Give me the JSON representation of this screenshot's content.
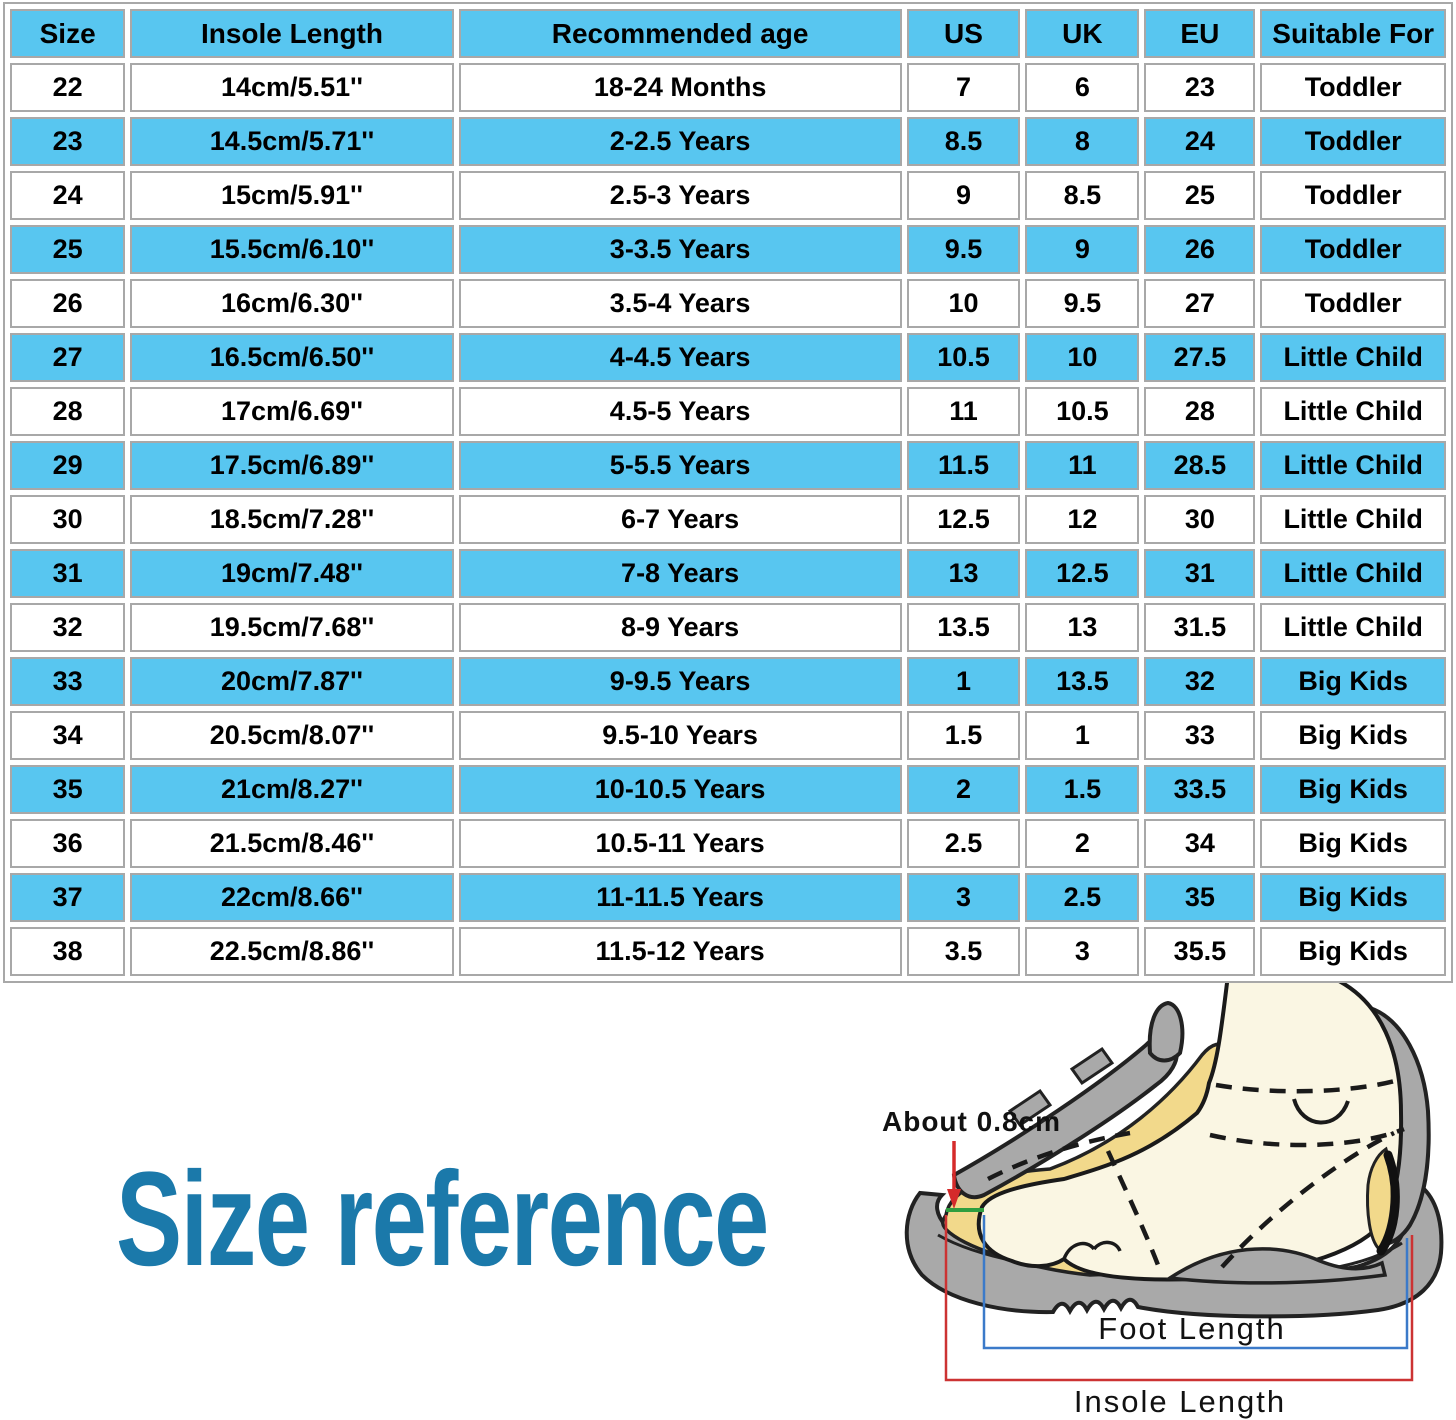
{
  "title": "Size reference",
  "colors": {
    "row_blue": "#58c6f0",
    "grid_gray": "#a8a8a8",
    "title_blue": "#1b79aa",
    "foot_line_blue": "#3b7ac9",
    "insole_line_red": "#cc3333",
    "gap_line_green": "#2f9e3f",
    "arrow_red": "#d52b2b",
    "insole_yellow": "#f2d98b",
    "shoe_gray": "#a9a9a9",
    "foot_cream": "#faf6e3"
  },
  "table": {
    "headers": [
      "Size",
      "Insole Length",
      "Recommended age",
      "US",
      "UK",
      "EU",
      "Suitable For"
    ],
    "rows": [
      [
        "22",
        "14cm/5.51''",
        "18-24 Months",
        "7",
        "6",
        "23",
        "Toddler"
      ],
      [
        "23",
        "14.5cm/5.71''",
        "2-2.5 Years",
        "8.5",
        "8",
        "24",
        "Toddler"
      ],
      [
        "24",
        "15cm/5.91''",
        "2.5-3 Years",
        "9",
        "8.5",
        "25",
        "Toddler"
      ],
      [
        "25",
        "15.5cm/6.10''",
        "3-3.5 Years",
        "9.5",
        "9",
        "26",
        "Toddler"
      ],
      [
        "26",
        "16cm/6.30''",
        "3.5-4 Years",
        "10",
        "9.5",
        "27",
        "Toddler"
      ],
      [
        "27",
        "16.5cm/6.50''",
        "4-4.5 Years",
        "10.5",
        "10",
        "27.5",
        "Little Child"
      ],
      [
        "28",
        "17cm/6.69''",
        "4.5-5 Years",
        "11",
        "10.5",
        "28",
        "Little Child"
      ],
      [
        "29",
        "17.5cm/6.89''",
        "5-5.5 Years",
        "11.5",
        "11",
        "28.5",
        "Little Child"
      ],
      [
        "30",
        "18.5cm/7.28''",
        "6-7 Years",
        "12.5",
        "12",
        "30",
        "Little Child"
      ],
      [
        "31",
        "19cm/7.48''",
        "7-8 Years",
        "13",
        "12.5",
        "31",
        "Little Child"
      ],
      [
        "32",
        "19.5cm/7.68''",
        "8-9 Years",
        "13.5",
        "13",
        "31.5",
        "Little Child"
      ],
      [
        "33",
        "20cm/7.87''",
        "9-9.5 Years",
        "1",
        "13.5",
        "32",
        "Big Kids"
      ],
      [
        "34",
        "20.5cm/8.07''",
        "9.5-10 Years",
        "1.5",
        "1",
        "33",
        "Big Kids"
      ],
      [
        "35",
        "21cm/8.27''",
        "10-10.5 Years",
        "2",
        "1.5",
        "33.5",
        "Big Kids"
      ],
      [
        "36",
        "21.5cm/8.46''",
        "10.5-11 Years",
        "2.5",
        "2",
        "34",
        "Big Kids"
      ],
      [
        "37",
        "22cm/8.66''",
        "11-11.5 Years",
        "3",
        "2.5",
        "35",
        "Big Kids"
      ],
      [
        "38",
        "22.5cm/8.86''",
        "11.5-12 Years",
        "3.5",
        "3",
        "35.5",
        "Big Kids"
      ]
    ]
  },
  "diagram": {
    "gap_label": "About 0.8cm",
    "foot_length_label": "Foot Length",
    "insole_length_label": "Insole Length"
  },
  "chart_data": {
    "type": "table",
    "title": "Size reference",
    "columns": [
      "Size",
      "Insole Length",
      "Recommended age",
      "US",
      "UK",
      "EU",
      "Suitable For"
    ],
    "rows": [
      [
        "22",
        "14cm/5.51''",
        "18-24 Months",
        "7",
        "6",
        "23",
        "Toddler"
      ],
      [
        "23",
        "14.5cm/5.71''",
        "2-2.5 Years",
        "8.5",
        "8",
        "24",
        "Toddler"
      ],
      [
        "24",
        "15cm/5.91''",
        "2.5-3 Years",
        "9",
        "8.5",
        "25",
        "Toddler"
      ],
      [
        "25",
        "15.5cm/6.10''",
        "3-3.5 Years",
        "9.5",
        "9",
        "26",
        "Toddler"
      ],
      [
        "26",
        "16cm/6.30''",
        "3.5-4 Years",
        "10",
        "9.5",
        "27",
        "Toddler"
      ],
      [
        "27",
        "16.5cm/6.50''",
        "4-4.5 Years",
        "10.5",
        "10",
        "27.5",
        "Little Child"
      ],
      [
        "28",
        "17cm/6.69''",
        "4.5-5 Years",
        "11",
        "10.5",
        "28",
        "Little Child"
      ],
      [
        "29",
        "17.5cm/6.89''",
        "5-5.5 Years",
        "11.5",
        "11",
        "28.5",
        "Little Child"
      ],
      [
        "30",
        "18.5cm/7.28''",
        "6-7 Years",
        "12.5",
        "12",
        "30",
        "Little Child"
      ],
      [
        "31",
        "19cm/7.48''",
        "7-8 Years",
        "13",
        "12.5",
        "31",
        "Little Child"
      ],
      [
        "32",
        "19.5cm/7.68''",
        "8-9 Years",
        "13.5",
        "13",
        "31.5",
        "Little Child"
      ],
      [
        "33",
        "20cm/7.87''",
        "9-9.5 Years",
        "1",
        "13.5",
        "32",
        "Big Kids"
      ],
      [
        "34",
        "20.5cm/8.07''",
        "9.5-10 Years",
        "1.5",
        "1",
        "33",
        "Big Kids"
      ],
      [
        "35",
        "21cm/8.27''",
        "10-10.5 Years",
        "2",
        "1.5",
        "33.5",
        "Big Kids"
      ],
      [
        "36",
        "21.5cm/8.46''",
        "10.5-11 Years",
        "2.5",
        "2",
        "34",
        "Big Kids"
      ],
      [
        "37",
        "22cm/8.66''",
        "11-11.5 Years",
        "3",
        "2.5",
        "35",
        "Big Kids"
      ],
      [
        "38",
        "22.5cm/8.86''",
        "11.5-12 Years",
        "3.5",
        "3",
        "35.5",
        "Big Kids"
      ]
    ]
  }
}
